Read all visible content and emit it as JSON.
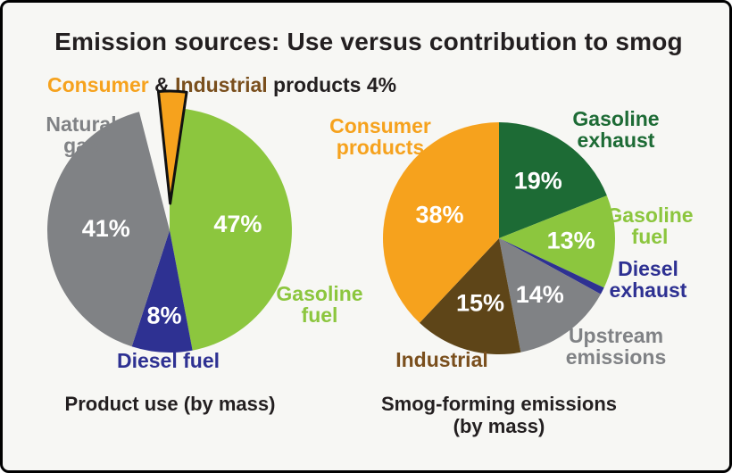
{
  "title": "Emission sources: Use versus contribution to smog",
  "header_note": {
    "parts": [
      {
        "text": "Consumer",
        "color": "#f6a21d"
      },
      {
        "text": " & ",
        "color": "#231f20"
      },
      {
        "text": "Industrial",
        "color": "#7a4f1d"
      },
      {
        "text": " products ",
        "color": "#231f20"
      },
      {
        "text": "4%",
        "color": "#231f20"
      }
    ]
  },
  "chart_data": [
    {
      "type": "pie",
      "title": "Product use (by mass)",
      "start_angle": -14.4,
      "legend_position": "around",
      "slices": [
        {
          "label": "Consumer & Industrial products",
          "value": 4,
          "color": "#f6a21d",
          "exploded": true
        },
        {
          "label": "Gasoline fuel",
          "value": 47,
          "color": "#8cc63e",
          "pct_label": "47%",
          "label_r": 0.56
        },
        {
          "label": "Diesel fuel",
          "value": 8,
          "color": "#2e3192",
          "pct_label": "8%",
          "label_r": 0.7
        },
        {
          "label": "Natural gas",
          "value": 41,
          "color": "#808285",
          "pct_label": "41%",
          "label_r": 0.52
        }
      ]
    },
    {
      "type": "pie",
      "title": "Smog-forming emissions (by mass)",
      "start_angle": 0,
      "legend_position": "around",
      "slices": [
        {
          "label": "Gasoline exhaust",
          "value": 19,
          "color": "#1d6b35",
          "pct_label": "19%",
          "label_r": 0.6
        },
        {
          "label": "Gasoline fuel",
          "value": 13,
          "color": "#8cc63e",
          "pct_label": "13%",
          "label_r": 0.62
        },
        {
          "label": "Diesel exhaust",
          "value": 1,
          "color": "#2e3192"
        },
        {
          "label": "Upstream emissions",
          "value": 14,
          "color": "#808285",
          "pct_label": "14%",
          "label_r": 0.6
        },
        {
          "label": "Industrial",
          "value": 15,
          "color": "#5e4518",
          "pct_label": "15%",
          "label_r": 0.58
        },
        {
          "label": "Consumer products",
          "value": 38,
          "color": "#f6a21d",
          "pct_label": "38%",
          "label_r": 0.55
        }
      ]
    }
  ],
  "labels": {
    "left": {
      "natural_gas": {
        "text": "Natural\ngas",
        "color": "#808285"
      },
      "gasoline_fuel": {
        "text": "Gasoline\nfuel",
        "color": "#8cc63e"
      },
      "diesel_fuel": {
        "text": "Diesel fuel",
        "color": "#2e3192"
      }
    },
    "right": {
      "consumer_products": {
        "text": "Consumer\nproducts",
        "color": "#f6a21d"
      },
      "gasoline_exhaust": {
        "text": "Gasoline\nexhaust",
        "color": "#1d6b35"
      },
      "gasoline_fuel": {
        "text": "Gasoline\nfuel",
        "color": "#8cc63e"
      },
      "diesel_exhaust": {
        "text": "Diesel\nexhaust",
        "color": "#2e3192"
      },
      "upstream_emissions": {
        "text": "Upstream\nemissions",
        "color": "#808285"
      },
      "industrial": {
        "text": "Industrial",
        "color": "#7a4f1d"
      }
    }
  },
  "captions": {
    "left": "Product use (by mass)",
    "right": "Smog-forming emissions\n(by mass)"
  }
}
